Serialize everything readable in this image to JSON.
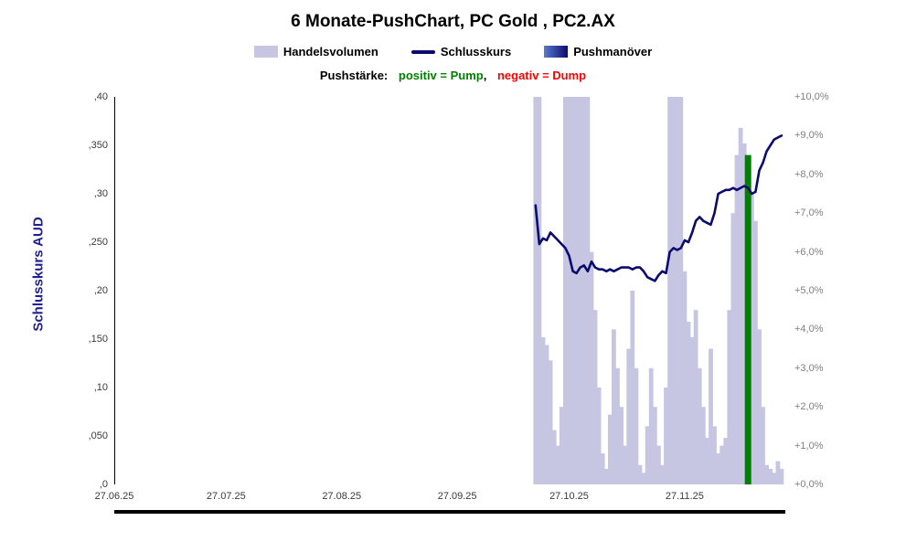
{
  "title": "6 Monate-PushChart, PC Gold , PC2.AX",
  "legend": {
    "volume_label": "Handelsvolumen",
    "close_label": "Schlusskurs",
    "push_label": "Pushmanöver",
    "push_strength_prefix": "Pushstärke:",
    "positive_label": "positiv = Pump",
    "separator": ",",
    "negative_label": "negativ = Dump"
  },
  "colors": {
    "volume": "#c6c5e2",
    "close": "#0b0b6e",
    "pump": "#008000",
    "dump": "#ff0000",
    "axis_text": "#3a3a3a",
    "right_axis_text": "#7f7f7f",
    "y_axis_title": "#1f1f8f"
  },
  "chart_data": {
    "type": "bar",
    "title": "6 Monate-PushChart, PC Gold , PC2.AX",
    "legend_position": "top",
    "grid": false,
    "x_axis": {
      "tick_labels": [
        "27.06.25",
        "27.07.25",
        "27.08.25",
        "27.09.25",
        "27.10.25",
        "27.11.25"
      ],
      "tick_days": [
        0,
        30,
        61,
        92,
        122,
        153
      ],
      "range_days": [
        0,
        180
      ]
    },
    "left_axis": {
      "title": "Schlusskurs AUD",
      "tick_labels": [
        ",40",
        ",350",
        ",30",
        ",250",
        ",20",
        ",150",
        ",10",
        ",050",
        ",0"
      ],
      "min": 0,
      "max": 0.4
    },
    "right_axis": {
      "tick_labels": [
        "+10,0%",
        "+9,0%",
        "+8,0%",
        "+7,0%",
        "+6,0%",
        "+5,0%",
        "+4,0%",
        "+3,0%",
        "+2,0%",
        "+1,0%",
        "+0,0%"
      ],
      "min_pct": 0,
      "max_pct": 10
    },
    "series": {
      "volume": {
        "name": "Handelsvolumen",
        "type": "bar",
        "start_day": 113,
        "values_pct_of_max": [
          100,
          100,
          38,
          36,
          32,
          14,
          10,
          20,
          100,
          100,
          100,
          100,
          100,
          100,
          100,
          60,
          45,
          25,
          8,
          4,
          18,
          40,
          30,
          20,
          10,
          35,
          50,
          30,
          5,
          3,
          15,
          30,
          20,
          10,
          5,
          25,
          100,
          100,
          100,
          100,
          55,
          42,
          38,
          45,
          30,
          20,
          12,
          35,
          15,
          8,
          10,
          12,
          45,
          70,
          85,
          92,
          88,
          0,
          75,
          68,
          40,
          20,
          5,
          4,
          3,
          6,
          4
        ]
      },
      "close": {
        "name": "Schlusskurs",
        "type": "line",
        "start_day": 113,
        "values_pct": [
          7.2,
          6.2,
          6.35,
          6.3,
          6.5,
          6.4,
          6.3,
          6.2,
          6.1,
          5.9,
          5.5,
          5.45,
          5.6,
          5.65,
          5.5,
          5.75,
          5.6,
          5.55,
          5.55,
          5.5,
          5.55,
          5.5,
          5.55,
          5.6,
          5.6,
          5.6,
          5.55,
          5.6,
          5.6,
          5.5,
          5.35,
          5.3,
          5.25,
          5.4,
          5.5,
          5.45,
          6.0,
          6.1,
          6.05,
          6.1,
          6.3,
          6.25,
          6.5,
          6.8,
          6.9,
          6.8,
          6.75,
          6.7,
          7.0,
          7.5,
          7.55,
          7.6,
          7.6,
          7.65,
          7.6,
          7.65,
          7.7,
          7.65,
          7.5,
          7.55,
          8.1,
          8.3,
          8.6,
          8.75,
          8.9,
          8.95,
          9.0
        ]
      },
      "push": {
        "name": "Pushmanöver",
        "type": "bar",
        "events": [
          {
            "day": 170,
            "value_pct": 8.5,
            "direction": "pump"
          }
        ]
      }
    }
  }
}
